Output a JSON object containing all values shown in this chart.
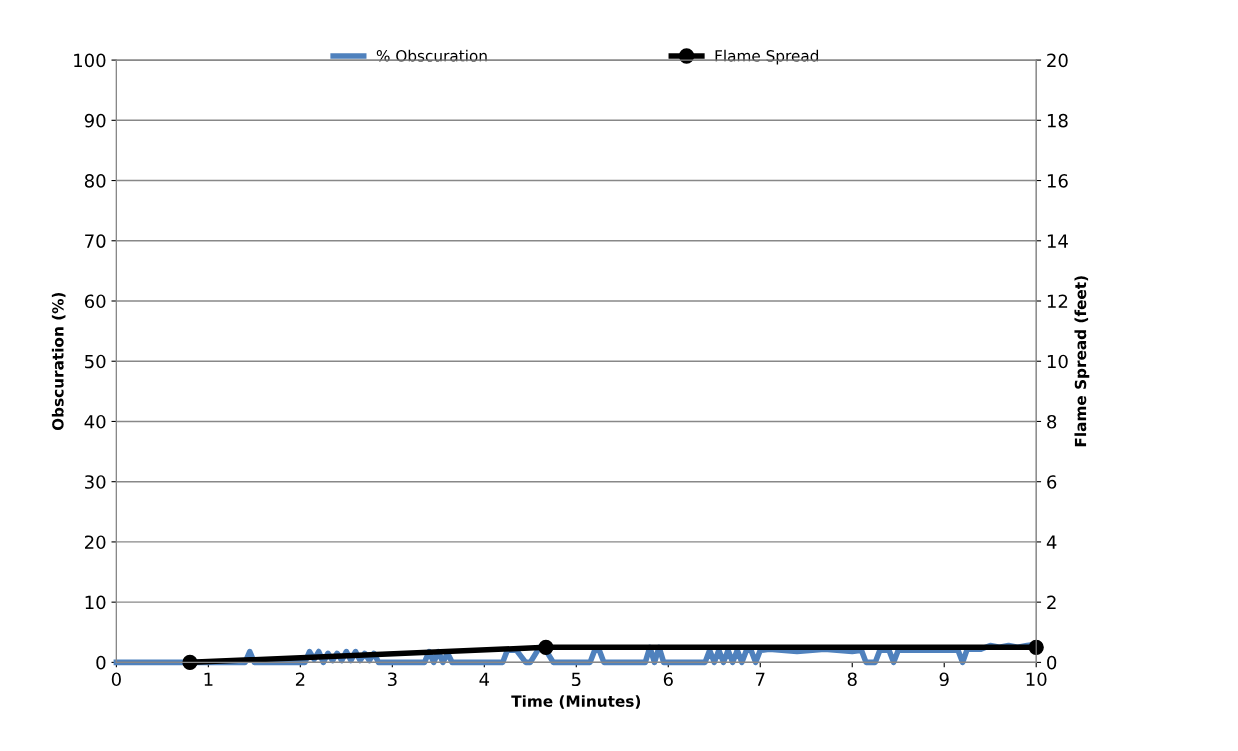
{
  "chart_data": {
    "type": "line",
    "xlabel": "Time (Minutes)",
    "ylabel": "Obscuration (%)",
    "y2label": "Flame Spread (feet)",
    "xlim": [
      0,
      10
    ],
    "xticks": [
      0,
      1,
      2,
      3,
      4,
      5,
      6,
      7,
      8,
      9,
      10
    ],
    "ylim": [
      0,
      100
    ],
    "yticks": [
      0,
      10,
      20,
      30,
      40,
      50,
      60,
      70,
      80,
      90,
      100
    ],
    "y2lim": [
      0,
      20
    ],
    "y2ticks": [
      0,
      2,
      4,
      6,
      8,
      10,
      12,
      14,
      16,
      18,
      20
    ],
    "grid": "y",
    "legend": "top",
    "series": [
      {
        "name": "% Obscuration",
        "color": "#4f81bd",
        "marker": "none",
        "x": [
          0,
          1.4,
          1.45,
          1.5,
          2.05,
          2.1,
          2.15,
          2.2,
          2.25,
          2.3,
          2.35,
          2.4,
          2.45,
          2.5,
          2.55,
          2.6,
          2.65,
          2.7,
          2.75,
          2.8,
          2.85,
          3.35,
          3.4,
          3.45,
          3.5,
          3.55,
          3.6,
          3.65,
          4.2,
          4.25,
          4.35,
          4.45,
          4.5,
          4.6,
          4.65,
          4.75,
          4.8,
          5.15,
          5.2,
          5.25,
          5.3,
          5.4,
          5.75,
          5.8,
          5.85,
          5.9,
          5.95,
          6.4,
          6.45,
          6.5,
          6.55,
          6.6,
          6.65,
          6.7,
          6.75,
          6.8,
          6.85,
          6.9,
          6.95,
          7.0,
          7.1,
          7.4,
          7.7,
          8.0,
          8.1,
          8.15,
          8.25,
          8.3,
          8.4,
          8.45,
          8.5,
          8.6,
          9.0,
          9.15,
          9.2,
          9.25,
          9.4,
          9.5,
          9.6,
          9.7,
          9.8,
          9.9,
          10
        ],
        "values": [
          0,
          0,
          1.8,
          0,
          0,
          1.8,
          0.5,
          1.8,
          0,
          1.5,
          0.3,
          1.5,
          0.3,
          1.8,
          0.3,
          1.8,
          0.3,
          1.5,
          0.3,
          1.5,
          0,
          0,
          1.8,
          0,
          1.8,
          0,
          1.5,
          0,
          0,
          2,
          2,
          0,
          0,
          2.5,
          2.5,
          0,
          0,
          0,
          2,
          2,
          0,
          0,
          0,
          2.5,
          0,
          2.5,
          0,
          0,
          2,
          0,
          2,
          0,
          2,
          0,
          2,
          0,
          2,
          2,
          0,
          2,
          2.2,
          1.8,
          2.2,
          1.8,
          2,
          0,
          0,
          2,
          2,
          0,
          2,
          2,
          2,
          2,
          0,
          2.2,
          2.2,
          2.8,
          2.5,
          2.8,
          2.5,
          2.8,
          3
        ]
      },
      {
        "name": "Flame Spread",
        "color": "#000000",
        "axis": "y2",
        "marker": "circle",
        "x": [
          0.8,
          4.67,
          10
        ],
        "values": [
          0,
          0.5,
          0.5
        ]
      }
    ]
  }
}
